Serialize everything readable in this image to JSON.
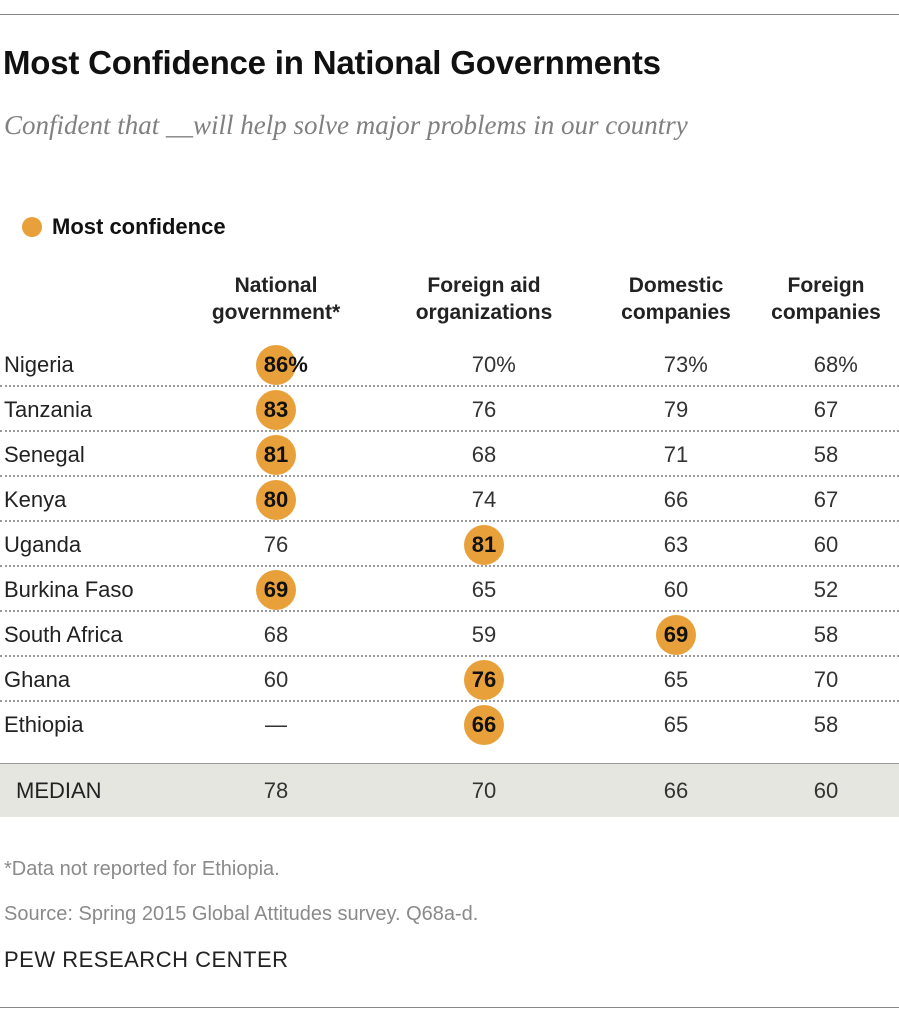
{
  "title": "Most Confidence in National Governments",
  "subtitle": "Confident that __will help solve major problems in our country",
  "legend": {
    "label": "Most confidence",
    "color": "#E8A03A"
  },
  "chart_data": {
    "type": "table",
    "columns": [
      {
        "lines": [
          "National",
          "government*"
        ]
      },
      {
        "lines": [
          "Foreign aid",
          "organizations"
        ]
      },
      {
        "lines": [
          "Domestic",
          "companies"
        ]
      },
      {
        "lines": [
          "Foreign",
          "companies"
        ]
      }
    ],
    "rows": [
      {
        "country": "Nigeria",
        "values": [
          "86",
          "70",
          "73",
          "68"
        ],
        "highlight": 0
      },
      {
        "country": "Tanzania",
        "values": [
          "83",
          "76",
          "79",
          "67"
        ],
        "highlight": 0
      },
      {
        "country": "Senegal",
        "values": [
          "81",
          "68",
          "71",
          "58"
        ],
        "highlight": 0
      },
      {
        "country": "Kenya",
        "values": [
          "80",
          "74",
          "66",
          "67"
        ],
        "highlight": 0
      },
      {
        "country": "Uganda",
        "values": [
          "76",
          "81",
          "63",
          "60"
        ],
        "highlight": 1
      },
      {
        "country": "Burkina Faso",
        "values": [
          "69",
          "65",
          "60",
          "52"
        ],
        "highlight": 0
      },
      {
        "country": "South Africa",
        "values": [
          "68",
          "59",
          "69",
          "58"
        ],
        "highlight": 2
      },
      {
        "country": "Ghana",
        "values": [
          "60",
          "76",
          "65",
          "70"
        ],
        "highlight": 1
      },
      {
        "country": "Ethiopia",
        "values": [
          "—",
          "66",
          "65",
          "58"
        ],
        "highlight": 1
      }
    ],
    "percent_suffix": "%",
    "median": {
      "label": "MEDIAN",
      "values": [
        "78",
        "70",
        "66",
        "60"
      ]
    }
  },
  "footnote": "*Data not reported for Ethiopia.",
  "source": "Source: Spring 2015 Global Attitudes survey. Q68a-d.",
  "brand": "PEW RESEARCH CENTER"
}
